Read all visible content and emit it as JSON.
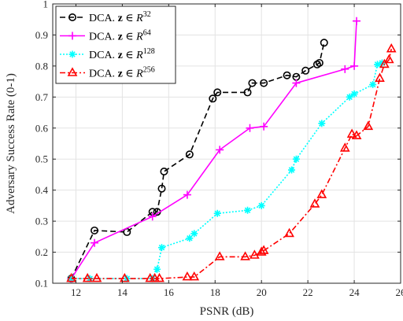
{
  "chart_data": {
    "type": "line",
    "xlabel": "PSNR (dB)",
    "ylabel": "Adversary Success Rate (0-1)",
    "xlim": [
      11,
      26
    ],
    "ylim": [
      0.1,
      1
    ],
    "xticks": [
      12,
      14,
      16,
      18,
      20,
      22,
      24,
      26
    ],
    "yticks": [
      0.1,
      0.2,
      0.3,
      0.4,
      0.5,
      0.6,
      0.7,
      0.8,
      0.9,
      1
    ],
    "xtick_labels": [
      "12",
      "14",
      "16",
      "18",
      "20",
      "22",
      "24",
      "26"
    ],
    "ytick_labels": [
      "0.1",
      "0.2",
      "0.3",
      "0.4",
      "0.5",
      "0.6",
      "0.7",
      "0.8",
      "0.9",
      "1"
    ],
    "grid": true,
    "legend_position": "top-left",
    "series": [
      {
        "name": "DCA. z ∈ R^32",
        "legend_prefix": "DCA. ",
        "legend_var": "z",
        "legend_in": " ∈ ",
        "legend_base": "R",
        "legend_exp": "32",
        "color": "#000000",
        "marker": "circle",
        "dash": "7,4",
        "x": [
          11.8,
          12.8,
          14.2,
          15.3,
          15.5,
          15.7,
          15.8,
          16.9,
          17.9,
          18.1,
          19.4,
          19.6,
          20.1,
          21.1,
          21.5,
          21.9,
          22.4,
          22.5,
          22.7
        ],
        "y": [
          0.115,
          0.27,
          0.265,
          0.33,
          0.33,
          0.405,
          0.46,
          0.515,
          0.695,
          0.715,
          0.715,
          0.745,
          0.745,
          0.77,
          0.765,
          0.785,
          0.805,
          0.81,
          0.875
        ]
      },
      {
        "name": "DCA. z ∈ R^64",
        "legend_prefix": "DCA. ",
        "legend_var": "z",
        "legend_in": " ∈ ",
        "legend_base": "R",
        "legend_exp": "64",
        "color": "#ff00ff",
        "marker": "plus",
        "dash": "",
        "x": [
          11.8,
          12.8,
          15.3,
          16.8,
          18.2,
          19.5,
          20.1,
          21.5,
          23.6,
          24.0,
          24.1
        ],
        "y": [
          0.115,
          0.23,
          0.315,
          0.385,
          0.53,
          0.6,
          0.605,
          0.745,
          0.79,
          0.8,
          0.945
        ]
      },
      {
        "name": "DCA. z ∈ R^128",
        "legend_prefix": "DCA. ",
        "legend_var": "z",
        "legend_in": " ∈ ",
        "legend_base": "R",
        "legend_exp": "128",
        "color": "#00ffff",
        "marker": "star",
        "dash": "2,2",
        "x": [
          11.8,
          12.6,
          14.2,
          15.3,
          15.5,
          15.7,
          16.9,
          17.1,
          18.1,
          19.4,
          20.0,
          21.3,
          21.5,
          22.6,
          23.8,
          24.0,
          24.8,
          25.0,
          25.2
        ],
        "y": [
          0.115,
          0.115,
          0.115,
          0.115,
          0.145,
          0.215,
          0.245,
          0.26,
          0.325,
          0.335,
          0.35,
          0.465,
          0.5,
          0.615,
          0.7,
          0.71,
          0.74,
          0.805,
          0.81
        ]
      },
      {
        "name": "DCA. z ∈ R^256",
        "legend_prefix": "DCA. ",
        "legend_var": "z",
        "legend_in": " ∈ ",
        "legend_base": "R",
        "legend_exp": "256",
        "color": "#ff0000",
        "marker": "triangle",
        "dash": "7,3,2,3",
        "x": [
          11.8,
          12.5,
          12.9,
          14.1,
          15.2,
          15.4,
          15.6,
          16.8,
          17.1,
          18.2,
          19.3,
          19.7,
          20.0,
          20.1,
          21.2,
          22.3,
          22.6,
          23.6,
          23.9,
          24.1,
          24.6,
          25.1,
          25.3,
          25.5,
          25.6
        ],
        "y": [
          0.115,
          0.115,
          0.115,
          0.115,
          0.115,
          0.115,
          0.115,
          0.12,
          0.12,
          0.185,
          0.185,
          0.19,
          0.2,
          0.205,
          0.26,
          0.355,
          0.385,
          0.535,
          0.58,
          0.575,
          0.605,
          0.76,
          0.805,
          0.82,
          0.855
        ]
      }
    ]
  }
}
